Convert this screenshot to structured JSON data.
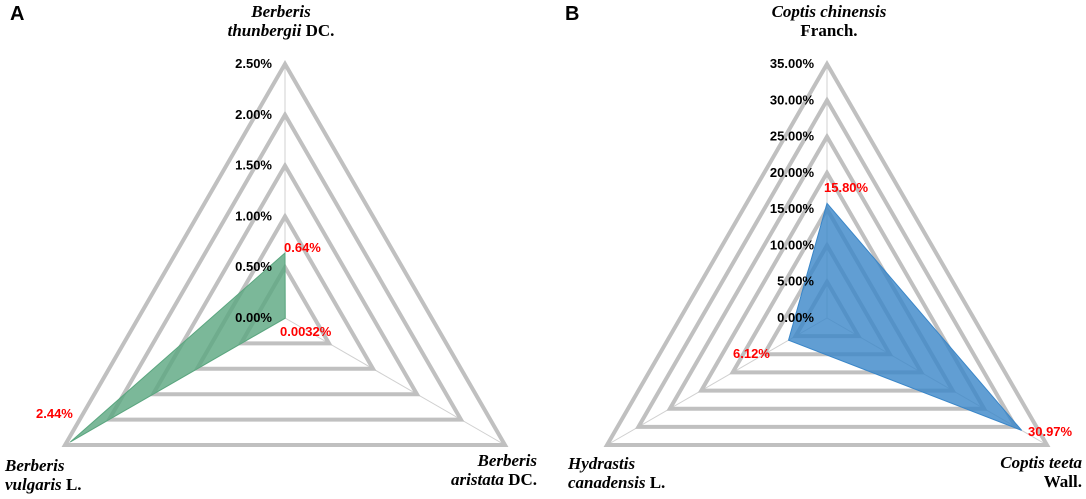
{
  "panels": [
    {
      "letter": "A"
    },
    {
      "letter": "B"
    }
  ],
  "chart_data": [
    {
      "type": "radar",
      "panel": "A",
      "axes": [
        {
          "name": "Berberis thunbergii DC.",
          "lines": [
            [
              {
                "t": "Berberis",
                "i": true
              }
            ],
            [
              {
                "t": "thunbergii",
                "i": true
              },
              {
                "t": " DC.",
                "i": false
              }
            ]
          ]
        },
        {
          "name": "Berberis aristata DC.",
          "lines": [
            [
              {
                "t": "Berberis",
                "i": true
              }
            ],
            [
              {
                "t": "aristata",
                "i": true
              },
              {
                "t": " DC.",
                "i": false
              }
            ]
          ]
        },
        {
          "name": "Berberis vulgaris L.",
          "lines": [
            [
              {
                "t": "Berberis",
                "i": true
              }
            ],
            [
              {
                "t": "vulgaris",
                "i": true
              },
              {
                "t": " L.",
                "i": false
              }
            ]
          ]
        }
      ],
      "values": [
        0.64,
        0.0032,
        2.44
      ],
      "value_labels": [
        "0.64%",
        "0.0032%",
        "2.44%"
      ],
      "range": [
        0,
        2.5
      ],
      "ticks": [
        "0.00%",
        "0.50%",
        "1.00%",
        "1.50%",
        "2.00%",
        "2.50%"
      ],
      "fill_color": "#5aa67f"
    },
    {
      "type": "radar",
      "panel": "B",
      "axes": [
        {
          "name": "Coptis chinensis Franch.",
          "lines": [
            [
              {
                "t": "Coptis chinensis",
                "i": true
              }
            ],
            [
              {
                "t": "Franch.",
                "i": false
              }
            ]
          ]
        },
        {
          "name": "Coptis teeta Wall.",
          "lines": [
            [
              {
                "t": "Coptis teeta",
                "i": true
              }
            ],
            [
              {
                "t": "Wall.",
                "i": false
              }
            ]
          ]
        },
        {
          "name": "Hydrastis canadensis L.",
          "lines": [
            [
              {
                "t": "Hydrastis",
                "i": true
              }
            ],
            [
              {
                "t": "canadensis",
                "i": true
              },
              {
                "t": " L.",
                "i": false
              }
            ]
          ]
        }
      ],
      "values": [
        15.8,
        30.97,
        6.12
      ],
      "value_labels": [
        "15.80%",
        "30.97%",
        "6.12%"
      ],
      "range": [
        0,
        35
      ],
      "ticks": [
        "0.00%",
        "5.00%",
        "10.00%",
        "15.00%",
        "20.00%",
        "25.00%",
        "30.00%",
        "35.00%"
      ],
      "fill_color": "#3a86c8"
    }
  ]
}
